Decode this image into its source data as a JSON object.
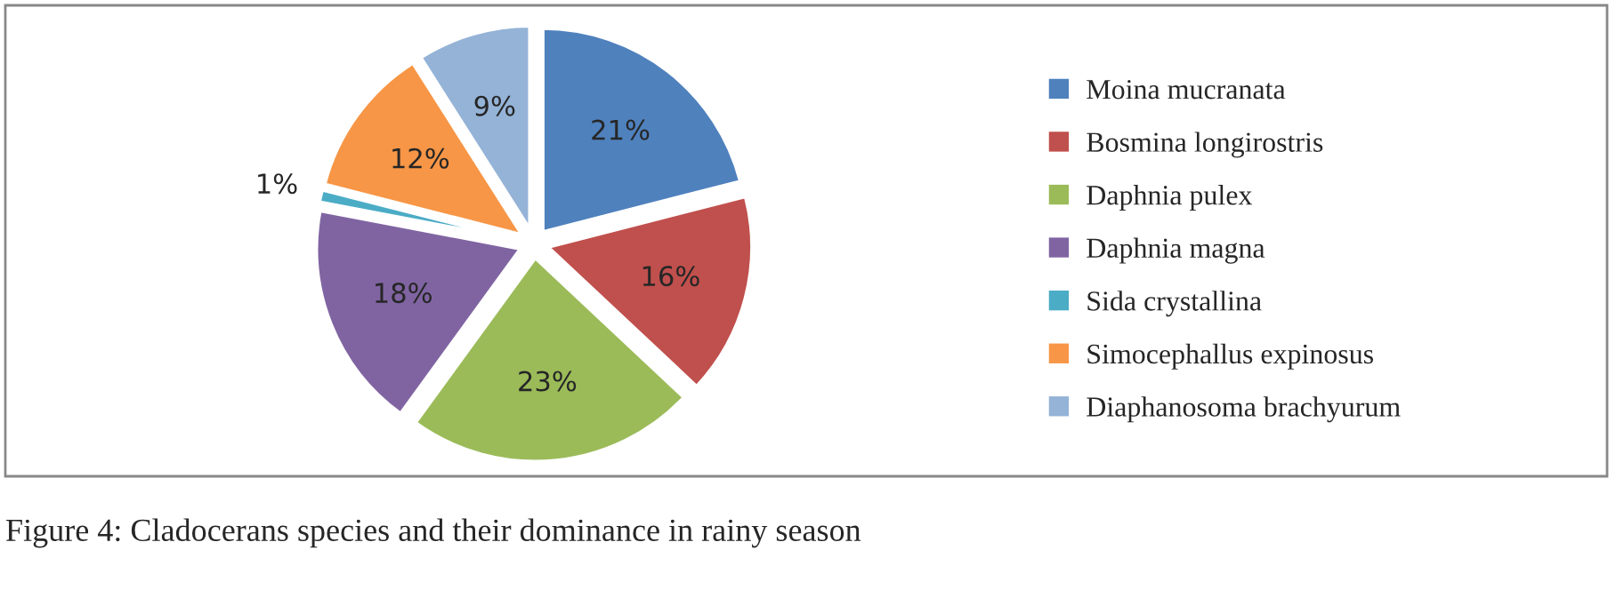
{
  "chart_data": {
    "type": "pie",
    "categories": [
      "Moina mucranata",
      "Bosmina longirostris",
      "Daphnia pulex",
      "Daphnia magna",
      "Sida crystallina",
      "Simocephallus expinosus",
      "Diaphanosoma brachyurum"
    ],
    "values": [
      21,
      16,
      23,
      18,
      1,
      12,
      9
    ],
    "colors": [
      "#4f81bd",
      "#c0504d",
      "#9bbb59",
      "#8064a2",
      "#4bacc6",
      "#f79646",
      "#95b3d7"
    ],
    "value_labels": [
      "21%",
      "16%",
      "23%",
      "18%",
      "1%",
      "12%",
      "9%"
    ],
    "legend": "right",
    "annotations": [
      "Figure 4: Cladocerans species and their dominance in rainy season"
    ]
  }
}
